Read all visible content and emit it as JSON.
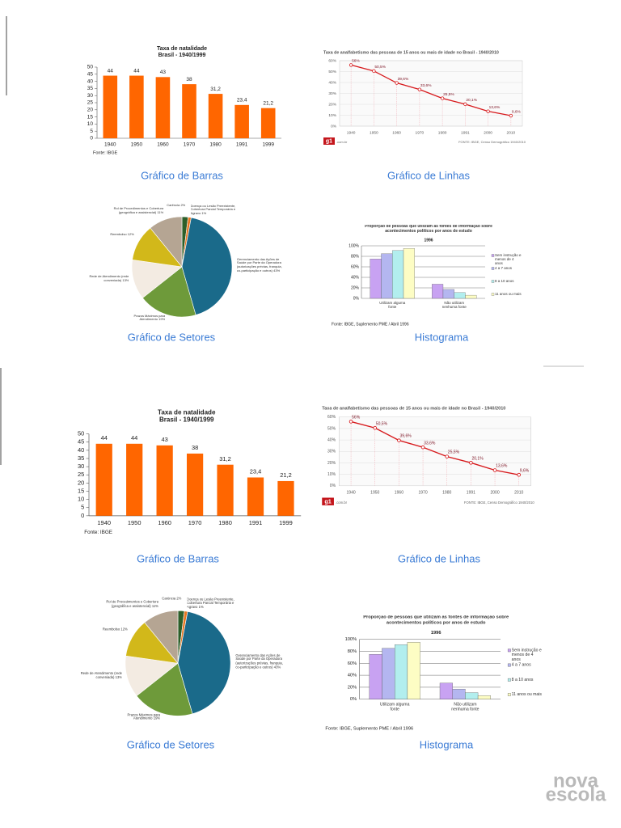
{
  "chart_data": [
    {
      "type": "bar",
      "caption": "Gráfico de Barras",
      "title": "Taxa de natalidade",
      "subtitle": "Brasil - 1940/1999",
      "categories": [
        "1940",
        "1950",
        "1960",
        "1970",
        "1980",
        "1991",
        "1999"
      ],
      "values": [
        44,
        44,
        43,
        38,
        31.2,
        23.4,
        21.2
      ],
      "value_labels": [
        "44",
        "44",
        "43",
        "38",
        "31,2",
        "23,4",
        "21,2"
      ],
      "color": "#ff6600",
      "ylim": [
        0,
        50
      ],
      "yticks": [
        0,
        5,
        10,
        15,
        20,
        25,
        30,
        35,
        40,
        45,
        50
      ],
      "source": "Fonte: IBGE"
    },
    {
      "type": "line",
      "caption": "Gráfico de Linhas",
      "title": "Taxa de analfabetismo das pessoas de 15 anos ou mais de idade no Brasil - 1940/2010",
      "categories": [
        "1940",
        "1950",
        "1960",
        "1970",
        "1980",
        "1991",
        "2000",
        "2010"
      ],
      "values": [
        56,
        50.5,
        39.6,
        33.6,
        25.5,
        20.1,
        13.6,
        9.6
      ],
      "value_labels": [
        "56%",
        "50,5%",
        "39,6%",
        "33,6%",
        "25,5%",
        "20,1%",
        "13,6%",
        "9,6%"
      ],
      "color": "#d7191c",
      "grid": true,
      "ylim": [
        0,
        60
      ],
      "yticks": [
        {
          "value": 0,
          "label": "0%"
        },
        {
          "value": 10,
          "label": "10%"
        },
        {
          "value": 20,
          "label": "20%"
        },
        {
          "value": 30,
          "label": "30%"
        },
        {
          "value": 40,
          "label": "40%"
        },
        {
          "value": 50,
          "label": "50%"
        },
        {
          "value": 60,
          "label": "60%"
        }
      ],
      "source": "FONTE: IBGE, Censo Demográfico 1940/2010",
      "logo": "g1",
      "logo_domain": ".com.br"
    },
    {
      "type": "pie",
      "caption": "Gráfico de Setores",
      "categories": [
        "Carência",
        "Doença ou Lesão Preexistente, Cobertura Parcial Temporária e Agravo",
        "Gerenciamento das Ações de Saúde por Parte da Operadora (autorizações prévias, franquia, co-participação e outros)",
        "Prazos Máximos para Atendimento",
        "Rede de Atendimento (rede conveniada)",
        "Reembolso",
        "Rol de Procedimentos e Cobertura (geográfica e assistencial)"
      ],
      "values": [
        2,
        1,
        43,
        19,
        13,
        12,
        11
      ],
      "value_labels": [
        "2%",
        "1%",
        "43%",
        "19%",
        "13%",
        "12%",
        "11%"
      ],
      "colors": [
        "#2d5f2a",
        "#e87722",
        "#1a6a8a",
        "#6e9a3a",
        "#f3ebe2",
        "#d2b81a",
        "#b5a593"
      ]
    },
    {
      "type": "bar",
      "caption": "Histograma",
      "title": "Proporção de pessoas que utilizam as fontes de informação sobre acontecimentos políticos por anos de estudo",
      "subtitle": "1996",
      "categories": [
        "Utilizam alguma fonte",
        "Não utilizam nenhuma fonte"
      ],
      "series": [
        {
          "name": "Sem instrução e menos de 4 anos",
          "color": "#c8a2f2",
          "values": [
            75,
            27
          ]
        },
        {
          "name": "4 a 7 anos",
          "color": "#b4b6f0",
          "values": [
            85,
            17
          ]
        },
        {
          "name": "8 a 10 anos",
          "color": "#b2eeee",
          "values": [
            91,
            11
          ]
        },
        {
          "name": "11 anos ou mais",
          "color": "#fdfdc4",
          "values": [
            95,
            6
          ]
        }
      ],
      "ylim": [
        0,
        100
      ],
      "grid": true,
      "yticks": [
        {
          "value": 0,
          "label": "0%"
        },
        {
          "value": 20,
          "label": "20%"
        },
        {
          "value": 40,
          "label": "40%"
        },
        {
          "value": 60,
          "label": "60%"
        },
        {
          "value": 80,
          "label": "80%"
        },
        {
          "value": 100,
          "label": "100%"
        }
      ],
      "source": "Fonte: IBGE, Suplemento PME / Abril 1996"
    },
    {
      "type": "bar",
      "caption": "Gráfico de Barras",
      "title": "Taxa de natalidade",
      "subtitle": "Brasil - 1940/1999",
      "categories": [
        "1940",
        "1950",
        "1960",
        "1970",
        "1980",
        "1991",
        "1999"
      ],
      "values": [
        44,
        44,
        43,
        38,
        31.2,
        23.4,
        21.2
      ],
      "value_labels": [
        "44",
        "44",
        "43",
        "38",
        "31,2",
        "23,4",
        "21,2"
      ],
      "color": "#ff6600",
      "ylim": [
        0,
        50
      ],
      "yticks": [
        0,
        5,
        10,
        15,
        20,
        25,
        30,
        35,
        40,
        45,
        50
      ],
      "source": "Fonte: IBGE"
    },
    {
      "type": "line",
      "caption": "Gráfico de Linhas",
      "title": "Taxa de analfabetismo das pessoas de 15 anos ou mais de idade no Brasil - 1940/2010",
      "categories": [
        "1940",
        "1950",
        "1960",
        "1970",
        "1980",
        "1991",
        "2000",
        "2010"
      ],
      "values": [
        56,
        50.5,
        39.6,
        33.6,
        25.5,
        20.1,
        13.6,
        9.6
      ],
      "value_labels": [
        "56%",
        "50,5%",
        "39,6%",
        "33,6%",
        "25,5%",
        "20,1%",
        "13,6%",
        "9,6%"
      ],
      "color": "#d7191c",
      "grid": true,
      "ylim": [
        0,
        60
      ],
      "yticks": [
        {
          "value": 0,
          "label": "0%"
        },
        {
          "value": 10,
          "label": "10%"
        },
        {
          "value": 20,
          "label": "20%"
        },
        {
          "value": 30,
          "label": "30%"
        },
        {
          "value": 40,
          "label": "40%"
        },
        {
          "value": 50,
          "label": "50%"
        },
        {
          "value": 60,
          "label": "60%"
        }
      ],
      "source": "FONTE: IBGE, Censo Demográfico 1940/2010",
      "logo": "g1",
      "logo_domain": ".com.br"
    },
    {
      "type": "pie",
      "caption": "Gráfico de Setores",
      "categories": [
        "Carência",
        "Doença ou Lesão Preexistente, Cobertura Parcial Temporária e Agravo",
        "Gerenciamento das Ações de Saúde por Parte da Operadora (autorizações prévias, franquia, co-participação e outros)",
        "Prazos Máximos para Atendimento",
        "Rede de Atendimento (rede conveniada)",
        "Reembolso",
        "Rol de Procedimentos e Cobertura (geográfica e assistencial)"
      ],
      "values": [
        2,
        1,
        43,
        19,
        13,
        12,
        11
      ],
      "value_labels": [
        "2%",
        "1%",
        "43%",
        "19%",
        "13%",
        "12%",
        "11%"
      ],
      "colors": [
        "#2d5f2a",
        "#e87722",
        "#1a6a8a",
        "#6e9a3a",
        "#f3ebe2",
        "#d2b81a",
        "#b5a593"
      ]
    },
    {
      "type": "bar",
      "caption": "Histograma",
      "title": "Proporção de pessoas que utilizam as fontes de informação sobre acontecimentos políticos por anos de estudo",
      "subtitle": "1996",
      "categories": [
        "Utilizam alguma fonte",
        "Não utilizam nenhuma fonte"
      ],
      "series": [
        {
          "name": "Sem instrução e menos de 4 anos",
          "color": "#c8a2f2",
          "values": [
            75,
            27
          ]
        },
        {
          "name": "4 a 7 anos",
          "color": "#b4b6f0",
          "values": [
            85,
            17
          ]
        },
        {
          "name": "8 a 10 anos",
          "color": "#b2eeee",
          "values": [
            91,
            11
          ]
        },
        {
          "name": "11 anos ou mais",
          "color": "#fdfdc4",
          "values": [
            95,
            6
          ]
        }
      ],
      "ylim": [
        0,
        100
      ],
      "grid": true,
      "yticks": [
        {
          "value": 0,
          "label": "0%"
        },
        {
          "value": 20,
          "label": "20%"
        },
        {
          "value": 40,
          "label": "40%"
        },
        {
          "value": 60,
          "label": "60%"
        },
        {
          "value": 80,
          "label": "80%"
        },
        {
          "value": 100,
          "label": "100%"
        }
      ],
      "source": "Fonte: IBGE, Suplemento PME / Abril 1996"
    }
  ],
  "logo": [
    "nova",
    "escola"
  ]
}
